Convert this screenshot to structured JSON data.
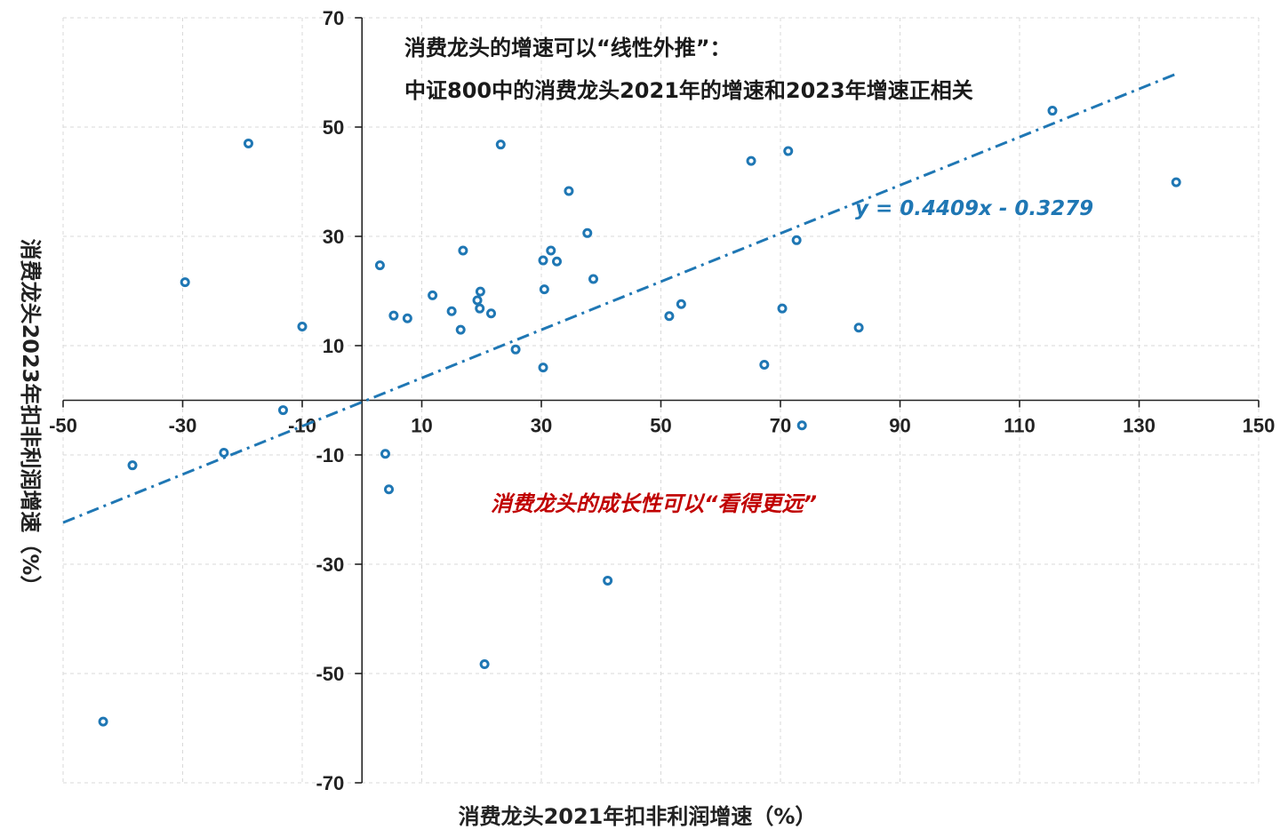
{
  "chart_data": {
    "type": "scatter",
    "title_lines": [
      "消费龙头的增速可以“线性外推”：",
      "中证800中的消费龙头2021年的增速和2023年增速正相关"
    ],
    "xlabel": "消费龙头2021年扣非利润增速（%）",
    "ylabel": "消费龙头2023年扣非利润增速（%）",
    "xlim": [
      -50,
      150
    ],
    "ylim": [
      -70,
      70
    ],
    "x_ticks": [
      -50,
      -30,
      -10,
      10,
      30,
      50,
      70,
      90,
      110,
      130,
      150
    ],
    "y_ticks": [
      70,
      50,
      30,
      10,
      -10,
      -30,
      -50,
      -70
    ],
    "grid": true,
    "trendline": {
      "slope": 0.4409,
      "intercept": -0.3279,
      "x_range": [
        -50,
        136
      ],
      "style": "dash-dot",
      "label": "y = 0.4409x - 0.3279"
    },
    "annotation": "消费龙头的成长性可以“看得更远”",
    "colors": {
      "points": "#1f77b4",
      "trendline": "#1f77b4",
      "equation": "#1f77b4",
      "annotation": "#c00000",
      "grid": "#d9d9d9",
      "axis": "#222222"
    },
    "points": [
      {
        "x": -43.3,
        "y": -58.8
      },
      {
        "x": -38.4,
        "y": -11.9
      },
      {
        "x": -29.6,
        "y": 21.6
      },
      {
        "x": -23.1,
        "y": -9.6
      },
      {
        "x": -19.0,
        "y": 47.0
      },
      {
        "x": -13.2,
        "y": -1.8
      },
      {
        "x": -10.0,
        "y": 13.5
      },
      {
        "x": 3.0,
        "y": 24.7
      },
      {
        "x": 3.9,
        "y": -9.8
      },
      {
        "x": 4.5,
        "y": -16.3
      },
      {
        "x": 5.3,
        "y": 15.5
      },
      {
        "x": 7.6,
        "y": 15.0
      },
      {
        "x": 11.8,
        "y": 19.2
      },
      {
        "x": 15.0,
        "y": 16.3
      },
      {
        "x": 16.5,
        "y": 12.9
      },
      {
        "x": 16.9,
        "y": 27.4
      },
      {
        "x": 19.3,
        "y": 18.3
      },
      {
        "x": 19.7,
        "y": 16.8
      },
      {
        "x": 19.8,
        "y": 19.9
      },
      {
        "x": 20.5,
        "y": -48.3
      },
      {
        "x": 21.6,
        "y": 15.9
      },
      {
        "x": 23.2,
        "y": 46.8
      },
      {
        "x": 25.7,
        "y": 9.3
      },
      {
        "x": 30.3,
        "y": 25.6
      },
      {
        "x": 30.3,
        "y": 6.0
      },
      {
        "x": 30.5,
        "y": 20.3
      },
      {
        "x": 31.6,
        "y": 27.4
      },
      {
        "x": 32.6,
        "y": 25.4
      },
      {
        "x": 34.6,
        "y": 38.3
      },
      {
        "x": 37.7,
        "y": 30.6
      },
      {
        "x": 38.7,
        "y": 22.2
      },
      {
        "x": 41.1,
        "y": -33.0
      },
      {
        "x": 51.4,
        "y": 15.4
      },
      {
        "x": 53.4,
        "y": 17.6
      },
      {
        "x": 65.1,
        "y": 43.8
      },
      {
        "x": 67.3,
        "y": 6.5
      },
      {
        "x": 70.3,
        "y": 16.8
      },
      {
        "x": 71.3,
        "y": 45.6
      },
      {
        "x": 72.7,
        "y": 29.3
      },
      {
        "x": 73.6,
        "y": -4.6
      },
      {
        "x": 83.1,
        "y": 13.3
      },
      {
        "x": 115.5,
        "y": 53.0
      },
      {
        "x": 136.2,
        "y": 39.9
      }
    ]
  }
}
